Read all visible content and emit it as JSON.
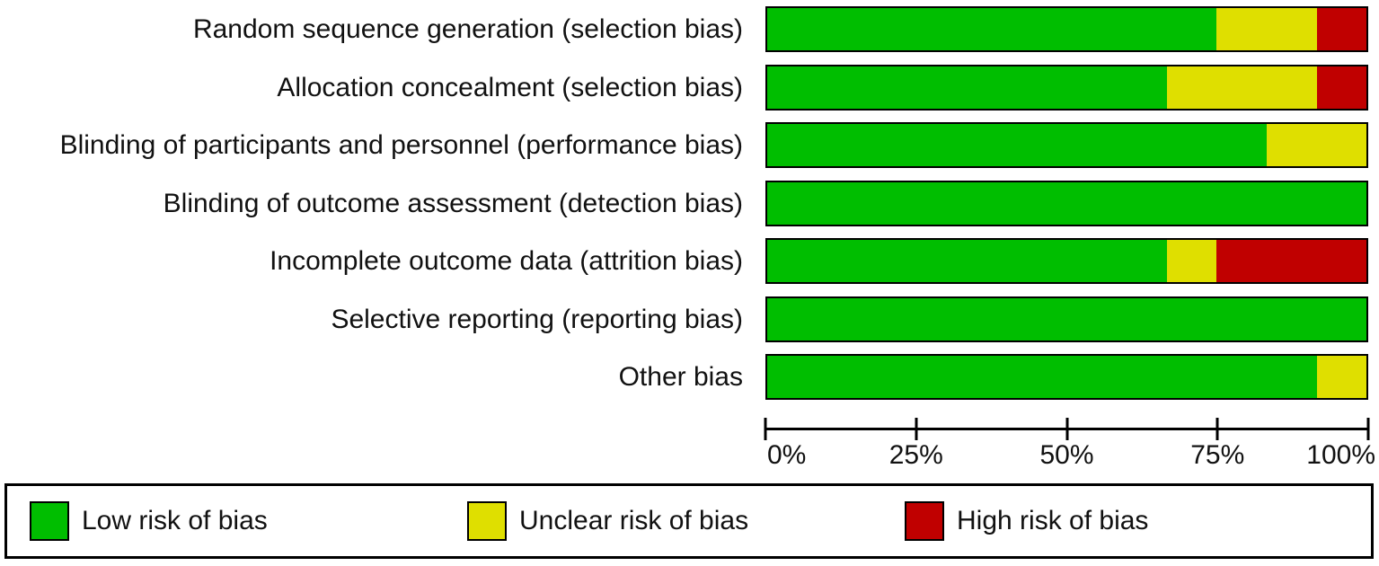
{
  "figure": {
    "background": "#ffffff",
    "border_color": "#000000",
    "text_color": "#111111"
  },
  "chart_data": {
    "type": "bar",
    "subtype": "horizontal-stacked",
    "title": "",
    "xlabel": "",
    "ylabel": "",
    "xlim": [
      0,
      100
    ],
    "grid": "off",
    "legend_position": "bottom",
    "x_tick_values": [
      0,
      25,
      50,
      75,
      100
    ],
    "x_tick_labels": [
      "0%",
      "25%",
      "50%",
      "75%",
      "100%"
    ],
    "categories": [
      "Random sequence generation (selection bias)",
      "Allocation concealment (selection bias)",
      "Blinding of participants and personnel (performance bias)",
      "Blinding of outcome assessment (detection bias)",
      "Incomplete outcome data (attrition bias)",
      "Selective reporting (reporting bias)",
      "Other bias"
    ],
    "series": [
      {
        "name": "Low risk of bias",
        "color": "#00BE00",
        "values": [
          75,
          66.7,
          83.3,
          100,
          66.7,
          100,
          91.7
        ]
      },
      {
        "name": "Unclear risk of bias",
        "color": "#DFDF00",
        "values": [
          16.7,
          25,
          16.7,
          0,
          8.3,
          0,
          8.3
        ]
      },
      {
        "name": "High risk of bias",
        "color": "#C00000",
        "values": [
          8.3,
          8.3,
          0,
          0,
          25,
          0,
          0
        ]
      }
    ]
  }
}
